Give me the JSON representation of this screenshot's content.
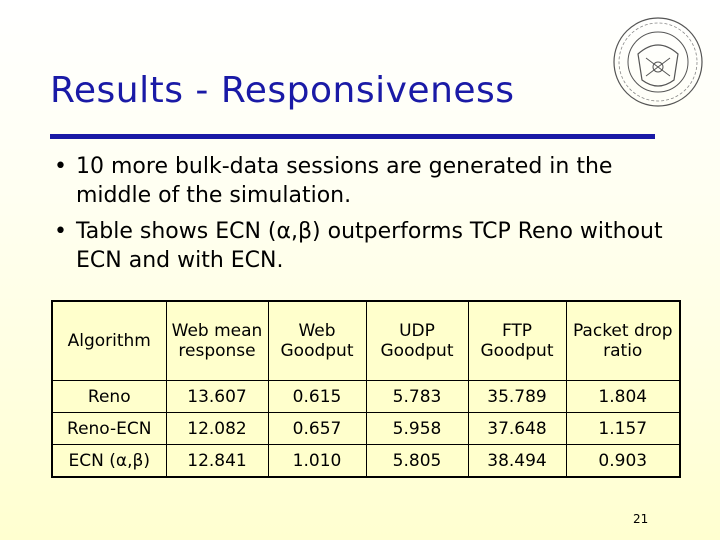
{
  "slide": {
    "title": "Results - Responsiveness",
    "bullets": [
      "10 more bulk-data sessions are generated in the middle of the simulation.",
      "Table shows ECN (α,β) outperforms TCP Reno without ECN and with ECN."
    ],
    "page_number": "21",
    "logo_icon": "university-seal-icon",
    "accent_color": "#1a1aa6"
  },
  "table": {
    "headers": [
      "Algorithm",
      "Web mean response",
      "Web Goodput",
      "UDP Goodput",
      "FTP Goodput",
      "Packet drop ratio"
    ],
    "rows": [
      [
        "Reno",
        "13.607",
        "0.615",
        "5.783",
        "35.789",
        "1.804"
      ],
      [
        "Reno-ECN",
        "12.082",
        "0.657",
        "5.958",
        "37.648",
        "1.157"
      ],
      [
        "ECN (α,β)",
        "12.841",
        "1.010",
        "5.805",
        "38.494",
        "0.903"
      ]
    ]
  }
}
